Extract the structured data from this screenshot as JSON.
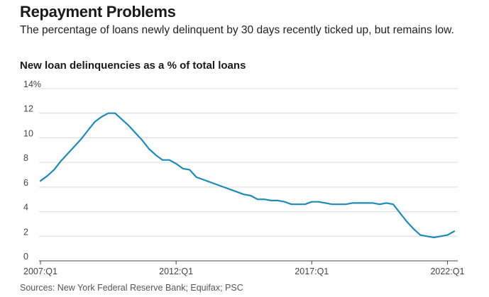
{
  "header": {
    "title": "Repayment Problems",
    "subtitle": "The percentage of loans newly delinquent by 30 days recently ticked up, but remains low.",
    "chart_title": "New loan delinquencies as a % of total loans",
    "source": "Sources: New York Federal Reserve Bank; Equifax; PSC"
  },
  "chart_data": {
    "type": "line",
    "title": "New loan delinquencies as a % of total loans",
    "ylim": [
      0,
      14
    ],
    "yticks": [
      {
        "value": 0,
        "label": "0"
      },
      {
        "value": 2,
        "label": "2"
      },
      {
        "value": 4,
        "label": "4"
      },
      {
        "value": 6,
        "label": "6"
      },
      {
        "value": 8,
        "label": "8"
      },
      {
        "value": 10,
        "label": "10"
      },
      {
        "value": 12,
        "label": "12"
      },
      {
        "value": 14,
        "label": "14%"
      }
    ],
    "xticks": [
      "2007:Q1",
      "2012:Q1",
      "2017:Q1",
      "2022:Q1"
    ],
    "line_color": "#1f8ab5",
    "grid": true,
    "series": [
      {
        "values": [
          [
            "2007:Q1",
            6.5
          ],
          [
            "2007:Q2",
            6.9
          ],
          [
            "2007:Q3",
            7.4
          ],
          [
            "2007:Q4",
            8.1
          ],
          [
            "2008:Q1",
            8.7
          ],
          [
            "2008:Q2",
            9.3
          ],
          [
            "2008:Q3",
            9.9
          ],
          [
            "2008:Q4",
            10.6
          ],
          [
            "2009:Q1",
            11.3
          ],
          [
            "2009:Q2",
            11.7
          ],
          [
            "2009:Q3",
            12.0
          ],
          [
            "2009:Q4",
            12.0
          ],
          [
            "2010:Q1",
            11.5
          ],
          [
            "2010:Q2",
            11.0
          ],
          [
            "2010:Q3",
            10.4
          ],
          [
            "2010:Q4",
            9.8
          ],
          [
            "2011:Q1",
            9.1
          ],
          [
            "2011:Q2",
            8.6
          ],
          [
            "2011:Q3",
            8.2
          ],
          [
            "2011:Q4",
            8.2
          ],
          [
            "2012:Q1",
            7.9
          ],
          [
            "2012:Q2",
            7.5
          ],
          [
            "2012:Q3",
            7.4
          ],
          [
            "2012:Q4",
            6.8
          ],
          [
            "2013:Q1",
            6.6
          ],
          [
            "2013:Q2",
            6.4
          ],
          [
            "2013:Q3",
            6.2
          ],
          [
            "2013:Q4",
            6.0
          ],
          [
            "2014:Q1",
            5.8
          ],
          [
            "2014:Q2",
            5.6
          ],
          [
            "2014:Q3",
            5.4
          ],
          [
            "2014:Q4",
            5.3
          ],
          [
            "2015:Q1",
            5.0
          ],
          [
            "2015:Q2",
            5.0
          ],
          [
            "2015:Q3",
            4.9
          ],
          [
            "2015:Q4",
            4.9
          ],
          [
            "2016:Q1",
            4.8
          ],
          [
            "2016:Q2",
            4.6
          ],
          [
            "2016:Q3",
            4.6
          ],
          [
            "2016:Q4",
            4.6
          ],
          [
            "2017:Q1",
            4.8
          ],
          [
            "2017:Q2",
            4.8
          ],
          [
            "2017:Q3",
            4.7
          ],
          [
            "2017:Q4",
            4.6
          ],
          [
            "2018:Q1",
            4.6
          ],
          [
            "2018:Q2",
            4.6
          ],
          [
            "2018:Q3",
            4.7
          ],
          [
            "2018:Q4",
            4.7
          ],
          [
            "2019:Q1",
            4.7
          ],
          [
            "2019:Q2",
            4.7
          ],
          [
            "2019:Q3",
            4.6
          ],
          [
            "2019:Q4",
            4.7
          ],
          [
            "2020:Q1",
            4.6
          ],
          [
            "2020:Q2",
            3.9
          ],
          [
            "2020:Q3",
            3.2
          ],
          [
            "2020:Q4",
            2.6
          ],
          [
            "2021:Q1",
            2.1
          ],
          [
            "2021:Q2",
            2.0
          ],
          [
            "2021:Q3",
            1.9
          ],
          [
            "2021:Q4",
            2.0
          ],
          [
            "2022:Q1",
            2.1
          ],
          [
            "2022:Q2",
            2.4
          ]
        ]
      }
    ]
  }
}
